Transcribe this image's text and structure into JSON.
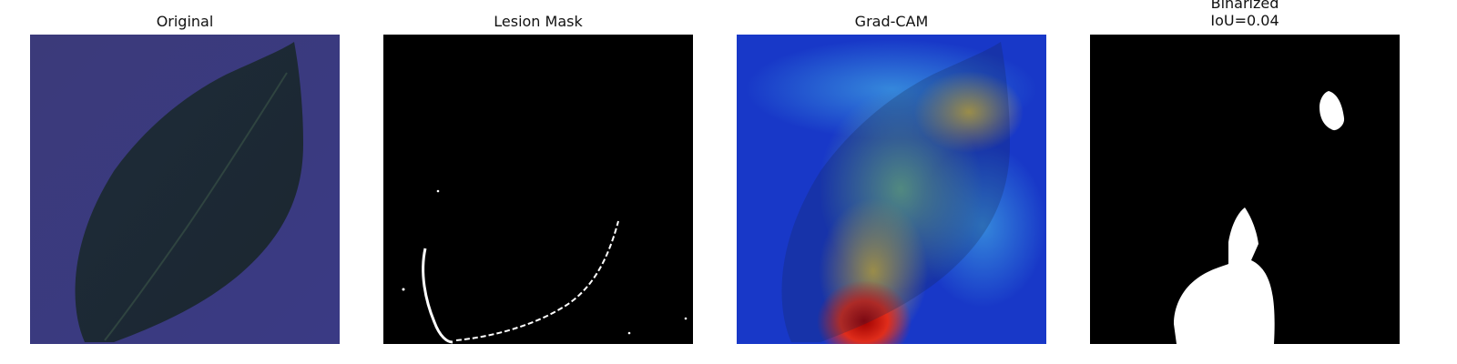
{
  "panels": [
    {
      "title": "Original"
    },
    {
      "title": "Lesion Mask"
    },
    {
      "title": "Grad-CAM"
    },
    {
      "title_line1": "Binarized",
      "title_line2": "IoU=0.04"
    }
  ]
}
